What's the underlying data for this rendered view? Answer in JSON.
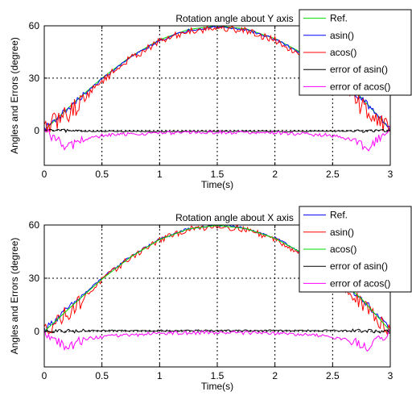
{
  "chart_data": [
    {
      "type": "line",
      "title": "Rotation angle about Y axis",
      "xlabel": "Time(s)",
      "ylabel": "Angles and Errors (degree)",
      "xlim": [
        0,
        3
      ],
      "ylim": [
        -20,
        60
      ],
      "xticks": [
        0,
        0.5,
        1,
        1.5,
        2,
        2.5,
        3
      ],
      "xtick_labels": [
        "0",
        "0.5",
        "1",
        "1.5",
        "2",
        "2.5",
        "3"
      ],
      "yticks": [
        0,
        30,
        60
      ],
      "ytick_labels": [
        "0",
        "30",
        "60"
      ],
      "grid": true,
      "legend_position": "top-right",
      "series": [
        {
          "name": "Ref.",
          "color": "#00dd00",
          "x": [
            0,
            0.25,
            0.5,
            0.75,
            1,
            1.25,
            1.5,
            1.75,
            2,
            2.25,
            2.5,
            2.75,
            3
          ],
          "y": [
            0,
            15.5,
            30,
            42.4,
            52,
            57.9,
            60,
            58.2,
            52.7,
            43.9,
            32,
            18.8,
            0.5
          ],
          "noise": 0
        },
        {
          "name": "asin()",
          "color": "#0000ff",
          "x": [
            0,
            0.25,
            0.5,
            0.75,
            1,
            1.25,
            1.5,
            1.75,
            2,
            2.25,
            2.5,
            2.75,
            3
          ],
          "y": [
            1,
            15,
            29.5,
            42,
            51.5,
            57.5,
            59.5,
            57.8,
            52.3,
            43.5,
            31.5,
            18.3,
            1
          ],
          "noise": 1
        },
        {
          "name": "acos()",
          "color": "#ff0000",
          "x": [
            0,
            0.25,
            0.5,
            0.75,
            1,
            1.25,
            1.5,
            1.75,
            2,
            2.25,
            2.5,
            2.75,
            3
          ],
          "y": [
            1,
            12,
            28.5,
            41.5,
            51,
            57,
            59,
            57.3,
            51.8,
            43,
            30.5,
            14,
            1
          ],
          "noise": 3
        },
        {
          "name": "error of asin()",
          "color": "#000000",
          "x": [
            0,
            0.5,
            1,
            1.5,
            2,
            2.5,
            3
          ],
          "y": [
            0,
            -0.5,
            -0.5,
            -0.5,
            -0.5,
            -0.5,
            0
          ],
          "noise": 0.5
        },
        {
          "name": "error of acos()",
          "color": "#ff00ff",
          "x": [
            0,
            0.1,
            0.2,
            0.3,
            0.5,
            0.75,
            1,
            1.5,
            2,
            2.25,
            2.5,
            2.7,
            2.8,
            2.9,
            3
          ],
          "y": [
            0,
            -5,
            -10,
            -6,
            -3,
            -2,
            -1.5,
            -1,
            -1.5,
            -2,
            -3,
            -6,
            -10,
            -5,
            0
          ],
          "noise": 1.5
        }
      ]
    },
    {
      "type": "line",
      "title": "Rotation angle about X axis",
      "xlabel": "Time(s)",
      "ylabel": "Angles and Errors (degree)",
      "xlim": [
        0,
        3
      ],
      "ylim": [
        -20,
        60
      ],
      "xticks": [
        0,
        0.5,
        1,
        1.5,
        2,
        2.5,
        3
      ],
      "xtick_labels": [
        "0",
        "0.5",
        "1",
        "1.5",
        "2",
        "2.5",
        "3"
      ],
      "yticks": [
        0,
        30,
        60
      ],
      "ytick_labels": [
        "0",
        "30",
        "60"
      ],
      "grid": true,
      "legend_position": "top-right",
      "series": [
        {
          "name": "Ref.",
          "color": "#0000ff",
          "x": [
            0,
            0.25,
            0.5,
            0.75,
            1,
            1.25,
            1.5,
            1.75,
            2,
            2.25,
            2.5,
            2.75,
            3
          ],
          "y": [
            1,
            15.5,
            30,
            42.4,
            52,
            57.9,
            60,
            58.2,
            52.7,
            43.9,
            32,
            18.8,
            1
          ],
          "noise": 1
        },
        {
          "name": "asin()",
          "color": "#ff0000",
          "x": [
            0,
            0.25,
            0.5,
            0.75,
            1,
            1.25,
            1.5,
            1.75,
            2,
            2.25,
            2.5,
            2.75,
            3
          ],
          "y": [
            0.5,
            13,
            29,
            41.8,
            51.5,
            57.5,
            59.5,
            57.6,
            52,
            43.2,
            30.8,
            15,
            0.5
          ],
          "noise": 2.5
        },
        {
          "name": "acos()",
          "color": "#00dd00",
          "x": [
            0,
            0.25,
            0.5,
            0.75,
            1,
            1.25,
            1.5,
            1.75,
            2,
            2.25,
            2.5,
            2.75,
            3
          ],
          "y": [
            0,
            15,
            29.5,
            42,
            51.8,
            57.8,
            59.8,
            58,
            52.5,
            43.7,
            31.8,
            18.5,
            0.3
          ],
          "noise": 0
        },
        {
          "name": "error of asin()",
          "color": "#000000",
          "x": [
            0,
            0.5,
            1,
            1.5,
            2,
            2.5,
            3
          ],
          "y": [
            0,
            0.5,
            0.5,
            0.5,
            0.5,
            0.5,
            0
          ],
          "noise": 0.6
        },
        {
          "name": "error of acos()",
          "color": "#ff00ff",
          "x": [
            0,
            0.1,
            0.2,
            0.3,
            0.5,
            0.75,
            1,
            1.5,
            2,
            2.25,
            2.5,
            2.7,
            2.8,
            2.9,
            3
          ],
          "y": [
            0,
            -5,
            -10,
            -5,
            -3,
            -2,
            -1,
            -0.5,
            -1,
            -2,
            -3,
            -6,
            -10,
            -5,
            0
          ],
          "noise": 1.5
        }
      ]
    }
  ]
}
